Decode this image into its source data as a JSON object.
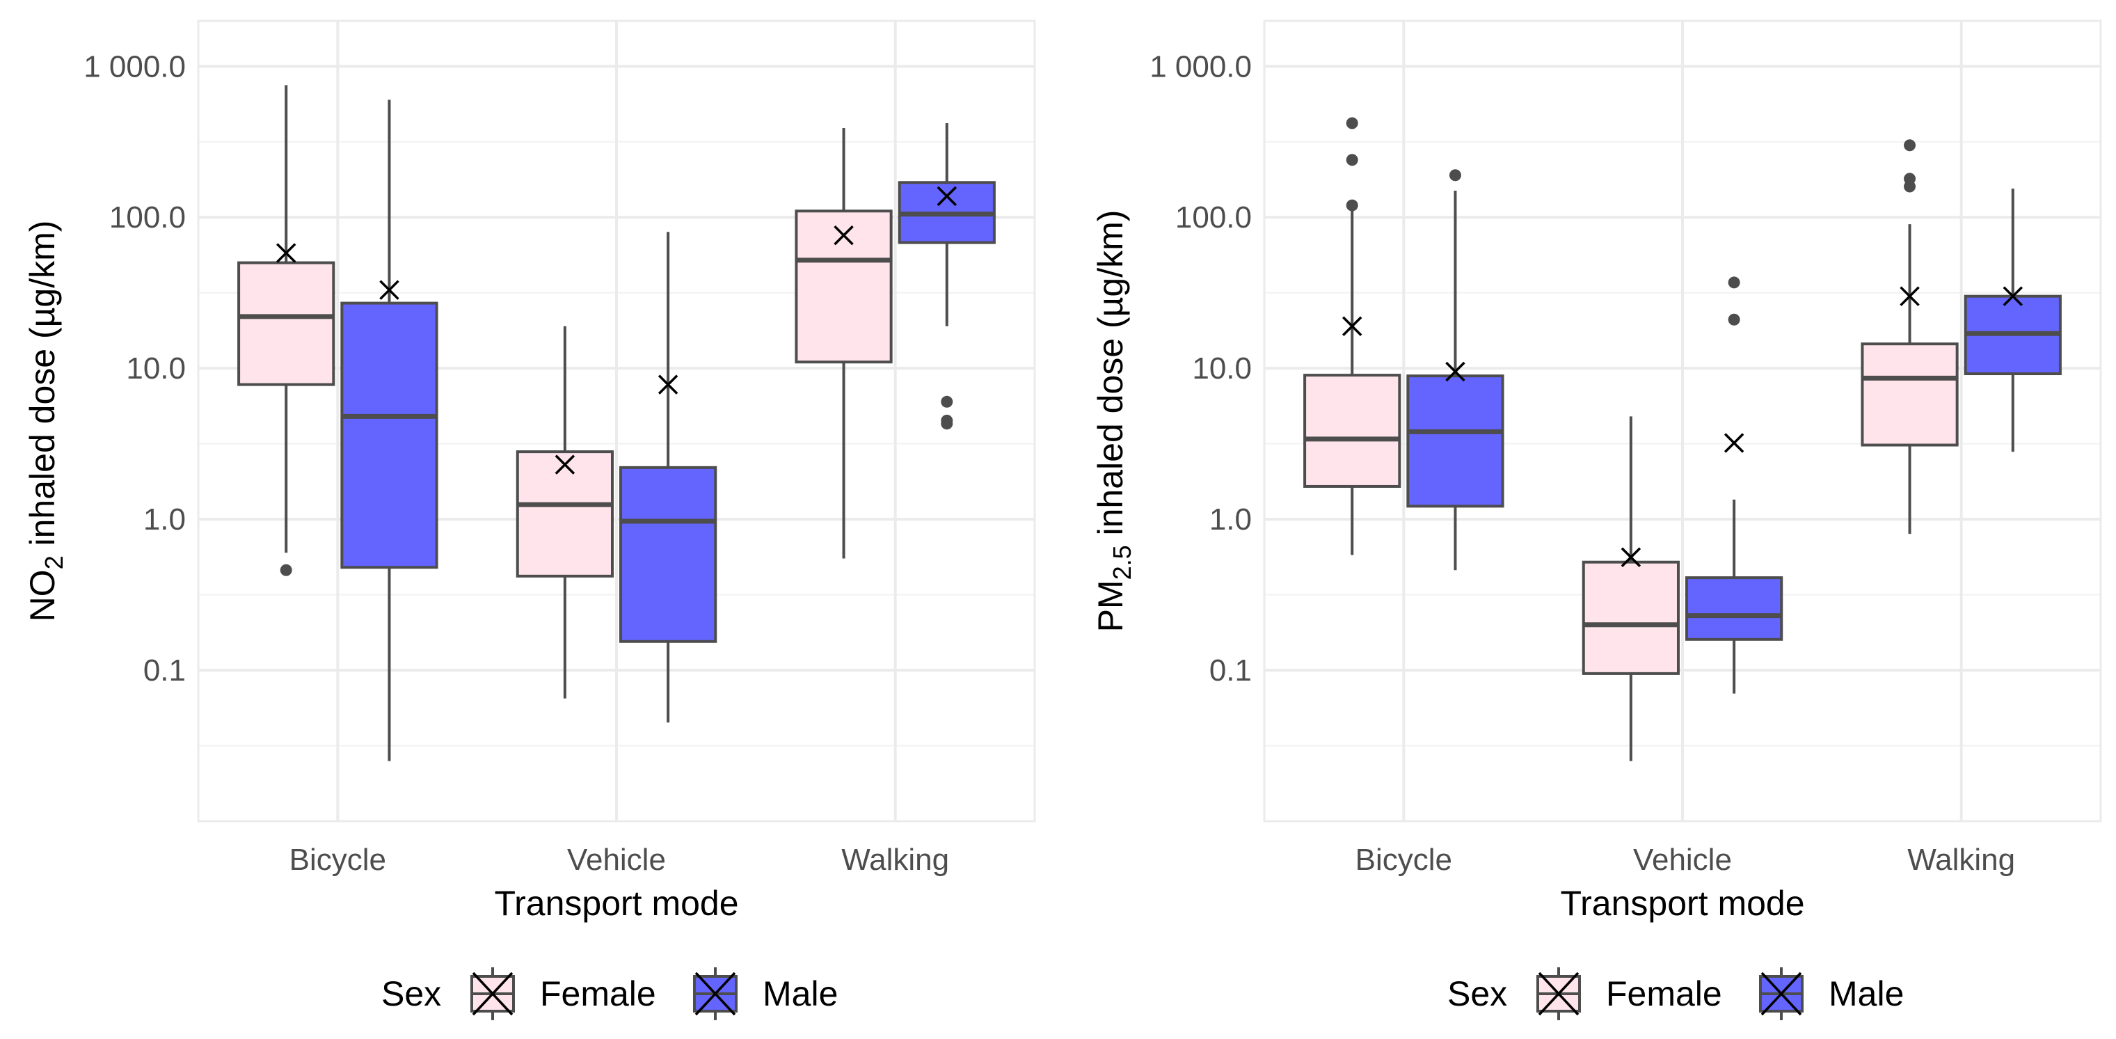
{
  "chart_data": [
    {
      "type": "boxplot",
      "ylabel_main": "NO",
      "ylabel_sub": "2",
      "ylabel_rest": " inhaled dose  (µg/km)",
      "xlabel": "Transport mode",
      "yscale": "log10",
      "ylim": [
        0.01,
        2000
      ],
      "yticks": [
        0.1,
        1,
        10,
        100,
        1000
      ],
      "ytick_labels": [
        "0.1",
        "1.0",
        "10.0",
        "100.0",
        "1 000.0"
      ],
      "categories": [
        "Bicycle",
        "Vehicle",
        "Walking"
      ],
      "legend": {
        "title": "Sex",
        "items": [
          "Female",
          "Male"
        ]
      },
      "series": [
        {
          "name": "Female",
          "color": "#ffe4ec",
          "boxes": [
            {
              "min": 0.6,
              "q1": 7.8,
              "median": 22,
              "q3": 50,
              "max": 750,
              "mean": 58,
              "outliers": [
                0.46
              ]
            },
            {
              "min": 0.065,
              "q1": 0.42,
              "median": 1.25,
              "q3": 2.8,
              "max": 19,
              "mean": 2.3,
              "outliers": []
            },
            {
              "min": 0.55,
              "q1": 11,
              "median": 52,
              "q3": 110,
              "max": 390,
              "mean": 76,
              "outliers": []
            }
          ]
        },
        {
          "name": "Male",
          "color": "#6464ff",
          "boxes": [
            {
              "min": 0.025,
              "q1": 0.48,
              "median": 4.8,
              "q3": 27,
              "max": 600,
              "mean": 33,
              "outliers": []
            },
            {
              "min": 0.045,
              "q1": 0.155,
              "median": 0.97,
              "q3": 2.2,
              "max": 80,
              "mean": 7.8,
              "outliers": []
            },
            {
              "min": 19,
              "q1": 68,
              "median": 105,
              "q3": 170,
              "max": 420,
              "mean": 138,
              "outliers": [
                6.0,
                4.5,
                4.3
              ]
            }
          ]
        }
      ]
    },
    {
      "type": "boxplot",
      "ylabel_main": "PM",
      "ylabel_sub": "2.5",
      "ylabel_rest": " inhaled dose  (µg/km)",
      "xlabel": "Transport mode",
      "yscale": "log10",
      "ylim": [
        0.01,
        2000
      ],
      "yticks": [
        0.1,
        1,
        10,
        100,
        1000
      ],
      "ytick_labels": [
        "0.1",
        "1.0",
        "10.0",
        "100.0",
        "1 000.0"
      ],
      "categories": [
        "Bicycle",
        "Vehicle",
        "Walking"
      ],
      "legend": {
        "title": "Sex",
        "items": [
          "Female",
          "Male"
        ]
      },
      "series": [
        {
          "name": "Female",
          "color": "#ffe4ec",
          "boxes": [
            {
              "min": 0.58,
              "q1": 1.65,
              "median": 3.4,
              "q3": 9.0,
              "max": 110,
              "mean": 19,
              "outliers": [
                420,
                240,
                120
              ]
            },
            {
              "min": 0.025,
              "q1": 0.095,
              "median": 0.2,
              "q3": 0.52,
              "max": 4.8,
              "mean": 0.56,
              "outliers": []
            },
            {
              "min": 0.8,
              "q1": 3.1,
              "median": 8.6,
              "q3": 14.5,
              "max": 90,
              "mean": 30,
              "outliers": [
                300,
                180,
                160
              ]
            }
          ]
        },
        {
          "name": "Male",
          "color": "#6464ff",
          "boxes": [
            {
              "min": 0.46,
              "q1": 1.22,
              "median": 3.8,
              "q3": 8.9,
              "max": 150,
              "mean": 9.5,
              "outliers": [
                190
              ]
            },
            {
              "min": 0.07,
              "q1": 0.16,
              "median": 0.23,
              "q3": 0.41,
              "max": 1.35,
              "mean": 3.2,
              "outliers": [
                37,
                21
              ]
            },
            {
              "min": 2.8,
              "q1": 9.2,
              "median": 17,
              "q3": 30,
              "max": 155,
              "mean": 30,
              "outliers": []
            }
          ]
        }
      ]
    }
  ]
}
